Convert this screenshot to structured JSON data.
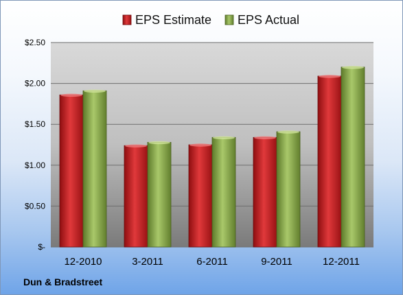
{
  "company": "Dun & Bradstreet",
  "colors": {
    "estimate": "#c0181c",
    "actual": "#8aac4a"
  },
  "chart_data": {
    "type": "bar",
    "title": "",
    "xlabel": "",
    "ylabel": "",
    "categories": [
      "12-2010",
      "3-2011",
      "6-2011",
      "9-2011",
      "12-2011"
    ],
    "series": [
      {
        "name": "EPS Estimate",
        "values": [
          1.86,
          1.24,
          1.25,
          1.34,
          2.09
        ]
      },
      {
        "name": "EPS Actual",
        "values": [
          1.91,
          1.28,
          1.34,
          1.41,
          2.2
        ]
      }
    ],
    "yticks": [
      0,
      0.5,
      1.0,
      1.5,
      2.0,
      2.5
    ],
    "ytick_labels": [
      "$-",
      "$0.50",
      "$1.00",
      "$1.50",
      "$2.00",
      "$2.50"
    ],
    "ylim": [
      0,
      2.5
    ],
    "legend_position": "top",
    "grid": true
  }
}
